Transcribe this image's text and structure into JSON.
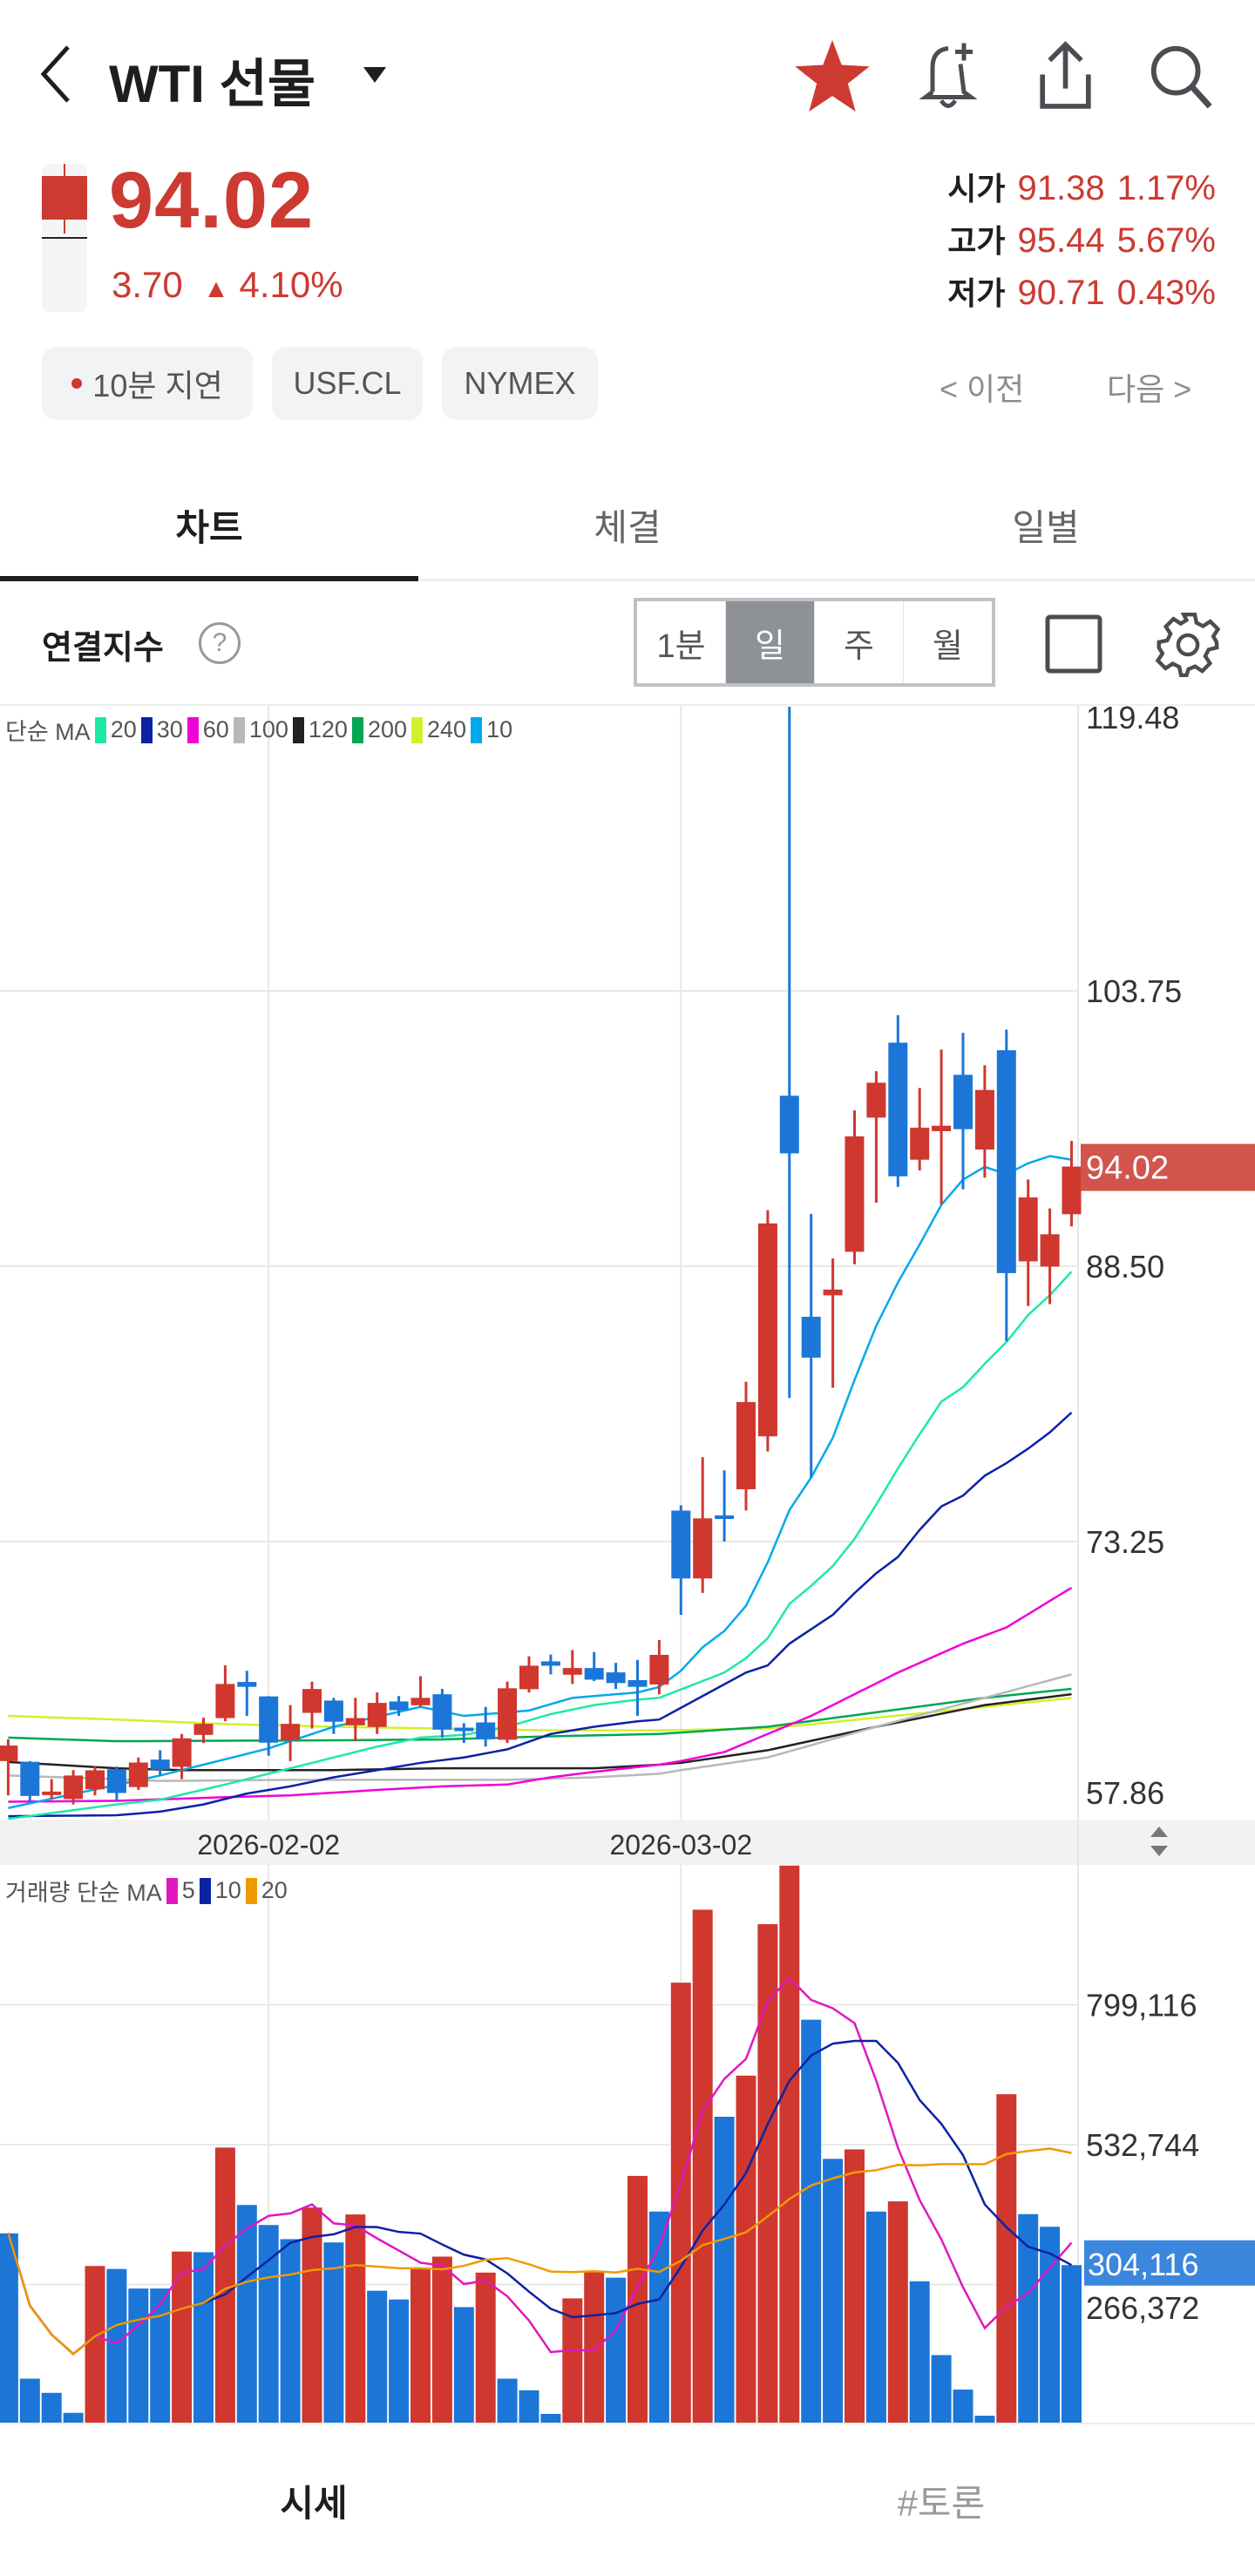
{
  "header": {
    "title": "WTI 선물",
    "icons": [
      "back-chevron-icon",
      "dropdown-triangle-icon",
      "star-icon",
      "bell-plus-icon",
      "share-icon",
      "search-icon"
    ],
    "favorite_color": "#cc3a31"
  },
  "quote": {
    "price": "94.02",
    "change": "3.70",
    "change_arrow": "▲",
    "change_pct": "4.10%",
    "open": {
      "label": "시가",
      "value": "91.38",
      "pct": "1.17%"
    },
    "high": {
      "label": "고가",
      "value": "95.44",
      "pct": "5.67%"
    },
    "low": {
      "label": "저가",
      "value": "90.71",
      "pct": "0.43%"
    },
    "up_color": "#cc3a31"
  },
  "chips": [
    "10분 지연",
    "USF.CL",
    "NYMEX"
  ],
  "pager": {
    "prev": "< 이전",
    "next": "다음 >"
  },
  "tabs": [
    {
      "label": "차트",
      "active": true
    },
    {
      "label": "체결"
    },
    {
      "label": "일별"
    }
  ],
  "controls": {
    "index_label": "연결지수",
    "help": "?",
    "periods": [
      "1분",
      "일",
      "주",
      "월"
    ],
    "selected_period": "일"
  },
  "bottom_nav": [
    "시세",
    "#토론"
  ],
  "chart_data": {
    "type": "candlestick",
    "price_axis": {
      "min": 57.86,
      "max": 119.48,
      "ticks": [
        "119.48",
        "103.75",
        "88.50",
        "73.25",
        "57.86"
      ],
      "current_label": "94.02"
    },
    "date_ticks": [
      {
        "label": "2026-02-02",
        "index": 12
      },
      {
        "label": "2026-03-02",
        "index": 31
      }
    ],
    "up_color": "#d0372e",
    "down_color": "#1b76d8",
    "ma_legend": {
      "title": "단순 MA",
      "items": [
        {
          "period": "20",
          "color": "#1de9a6"
        },
        {
          "period": "30",
          "color": "#0b22a5"
        },
        {
          "period": "60",
          "color": "#f000d8"
        },
        {
          "period": "100",
          "color": "#b8b8b8"
        },
        {
          "period": "120",
          "color": "#222222"
        },
        {
          "period": "200",
          "color": "#00a651"
        },
        {
          "period": "240",
          "color": "#d4f02a"
        },
        {
          "period": "10",
          "color": "#00a9ec"
        }
      ]
    },
    "candles_ohlc": [
      [
        61.1,
        62.3,
        59.2,
        61.96
      ],
      [
        61.06,
        61.1,
        58.9,
        59.17
      ],
      [
        59.22,
        60.1,
        59.0,
        59.41
      ],
      [
        59.0,
        60.6,
        58.7,
        60.3
      ],
      [
        59.54,
        60.8,
        59.2,
        60.59
      ],
      [
        60.65,
        60.8,
        58.9,
        59.33
      ],
      [
        59.66,
        61.3,
        59.5,
        61.02
      ],
      [
        61.18,
        61.7,
        60.3,
        60.62
      ],
      [
        60.78,
        62.6,
        60.1,
        62.36
      ],
      [
        62.55,
        63.5,
        62.1,
        63.16
      ],
      [
        63.48,
        66.4,
        63.3,
        65.37
      ],
      [
        65.48,
        66.1,
        63.6,
        65.21
      ],
      [
        64.68,
        64.7,
        61.4,
        62.12
      ],
      [
        62.26,
        64.2,
        61.1,
        63.16
      ],
      [
        63.77,
        65.5,
        62.9,
        65.09
      ],
      [
        64.45,
        64.6,
        62.6,
        63.28
      ],
      [
        63.08,
        64.6,
        62.2,
        63.48
      ],
      [
        62.99,
        64.9,
        62.6,
        64.32
      ],
      [
        64.4,
        64.7,
        63.6,
        63.92
      ],
      [
        64.19,
        65.8,
        64.1,
        64.6
      ],
      [
        64.8,
        65.1,
        62.4,
        62.84
      ],
      [
        62.95,
        63.2,
        62.1,
        62.87
      ],
      [
        63.24,
        64.1,
        61.9,
        62.31
      ],
      [
        62.28,
        65.5,
        62.1,
        65.13
      ],
      [
        65.08,
        66.9,
        64.9,
        66.38
      ],
      [
        66.62,
        67.0,
        65.9,
        66.38
      ],
      [
        65.88,
        67.25,
        65.37,
        66.25
      ],
      [
        66.25,
        67.14,
        65.53,
        65.61
      ],
      [
        66.01,
        66.54,
        65.09,
        65.42
      ],
      [
        65.58,
        66.7,
        63.6,
        65.21
      ],
      [
        65.34,
        67.8,
        64.8,
        66.98
      ],
      [
        74.97,
        75.26,
        69.2,
        71.21
      ],
      [
        71.21,
        77.92,
        70.41,
        74.54
      ],
      [
        74.7,
        77.2,
        73.25,
        74.64
      ],
      [
        76.15,
        82.1,
        74.97,
        80.98
      ],
      [
        79.08,
        91.6,
        78.24,
        90.87
      ],
      [
        97.94,
        119.48,
        81.2,
        94.75
      ],
      [
        85.7,
        91.4,
        76.8,
        83.44
      ],
      [
        86.89,
        88.93,
        81.77,
        87.21
      ],
      [
        89.3,
        97.13,
        88.61,
        95.69
      ],
      [
        96.73,
        99.3,
        92.02,
        98.66
      ],
      [
        100.88,
        102.4,
        92.9,
        93.48
      ],
      [
        94.4,
        98.37,
        93.8,
        96.17
      ],
      [
        95.98,
        100.5,
        91.94,
        96.28
      ],
      [
        99.1,
        101.43,
        92.76,
        96.09
      ],
      [
        94.96,
        99.63,
        93.4,
        98.26
      ],
      [
        100.46,
        101.6,
        84.35,
        88.12
      ],
      [
        88.77,
        93.3,
        86.3,
        92.31
      ],
      [
        88.48,
        91.7,
        86.4,
        90.27
      ],
      [
        91.38,
        95.44,
        90.71,
        94.02
      ]
    ],
    "moving_averages": {
      "10": [
        [
          0,
          58.5
        ],
        [
          7,
          60.3
        ],
        [
          10,
          61.2
        ],
        [
          12,
          61.8
        ],
        [
          15,
          63.0
        ],
        [
          19,
          64.1
        ],
        [
          21,
          63.6
        ],
        [
          24,
          63.9
        ],
        [
          26,
          64.6
        ],
        [
          29,
          64.9
        ],
        [
          30,
          65.2
        ],
        [
          31,
          66.1
        ],
        [
          32,
          67.4
        ],
        [
          33,
          68.3
        ],
        [
          34,
          69.7
        ],
        [
          35,
          72.1
        ],
        [
          36,
          75.0
        ],
        [
          37,
          76.8
        ],
        [
          38,
          79.0
        ],
        [
          39,
          82.2
        ],
        [
          40,
          85.2
        ],
        [
          41,
          87.6
        ],
        [
          42,
          89.7
        ],
        [
          43,
          91.9
        ],
        [
          44,
          93.3
        ],
        [
          45,
          94.0
        ],
        [
          46,
          93.6
        ],
        [
          47,
          94.2
        ],
        [
          48,
          94.6
        ],
        [
          49,
          94.4
        ]
      ],
      "20": [
        [
          0,
          57.9
        ],
        [
          5,
          58.7
        ],
        [
          7,
          58.96
        ],
        [
          10,
          59.8
        ],
        [
          12,
          60.4
        ],
        [
          15,
          61.3
        ],
        [
          17,
          61.9
        ],
        [
          19,
          62.4
        ],
        [
          21,
          62.55
        ],
        [
          23,
          63.0
        ],
        [
          25,
          63.7
        ],
        [
          27,
          64.2
        ],
        [
          29,
          64.5
        ],
        [
          30,
          64.6
        ],
        [
          33,
          66.0
        ],
        [
          34,
          66.8
        ],
        [
          35,
          67.9
        ],
        [
          36,
          69.8
        ],
        [
          37,
          70.8
        ],
        [
          38,
          71.9
        ],
        [
          39,
          73.4
        ],
        [
          40,
          75.3
        ],
        [
          41,
          77.3
        ],
        [
          42,
          79.2
        ],
        [
          43,
          81.0
        ],
        [
          44,
          81.8
        ],
        [
          45,
          83.1
        ],
        [
          46,
          84.3
        ],
        [
          47,
          85.8
        ],
        [
          48,
          86.9
        ],
        [
          49,
          88.2
        ]
      ],
      "30": [
        [
          0,
          58.05
        ],
        [
          5,
          58.1
        ],
        [
          7,
          58.3
        ],
        [
          9,
          58.7
        ],
        [
          11,
          59.3
        ],
        [
          13,
          59.7
        ],
        [
          15,
          60.2
        ],
        [
          17,
          60.6
        ],
        [
          19,
          61.0
        ],
        [
          21,
          61.3
        ],
        [
          23,
          61.75
        ],
        [
          25,
          62.6
        ],
        [
          27,
          63.0
        ],
        [
          29,
          63.3
        ],
        [
          30,
          63.4
        ],
        [
          34,
          66.0
        ],
        [
          35,
          66.4
        ],
        [
          36,
          67.6
        ],
        [
          37,
          68.4
        ],
        [
          38,
          69.2
        ],
        [
          39,
          70.4
        ],
        [
          40,
          71.5
        ],
        [
          41,
          72.4
        ],
        [
          42,
          73.9
        ],
        [
          43,
          75.2
        ],
        [
          44,
          75.8
        ],
        [
          45,
          76.9
        ],
        [
          46,
          77.6
        ],
        [
          47,
          78.4
        ],
        [
          48,
          79.3
        ],
        [
          49,
          80.4
        ]
      ],
      "60": [
        [
          0,
          58.85
        ],
        [
          5,
          58.9
        ],
        [
          10,
          59.1
        ],
        [
          13,
          59.2
        ],
        [
          17,
          59.5
        ],
        [
          20,
          59.7
        ],
        [
          23,
          59.8
        ],
        [
          25,
          60.2
        ],
        [
          27,
          60.5
        ],
        [
          30,
          60.9
        ],
        [
          31,
          61.1
        ],
        [
          33,
          61.6
        ],
        [
          35,
          62.6
        ],
        [
          37,
          63.6
        ],
        [
          39,
          64.8
        ],
        [
          41,
          66.0
        ],
        [
          44,
          67.6
        ],
        [
          46,
          68.5
        ],
        [
          49,
          70.7
        ]
      ],
      "100": [
        [
          0,
          60.3
        ],
        [
          5,
          60.1
        ],
        [
          7,
          60.0
        ],
        [
          13,
          60.06
        ],
        [
          23,
          60.06
        ],
        [
          27,
          60.2
        ],
        [
          30,
          60.4
        ],
        [
          31,
          60.6
        ],
        [
          35,
          61.3
        ],
        [
          40,
          63.0
        ],
        [
          45,
          64.6
        ],
        [
          49,
          65.9
        ]
      ],
      "120": [
        [
          0,
          61.05
        ],
        [
          5,
          60.7
        ],
        [
          8,
          60.6
        ],
        [
          15,
          60.6
        ],
        [
          20,
          60.7
        ],
        [
          27,
          60.7
        ],
        [
          30,
          60.9
        ],
        [
          31,
          61.0
        ],
        [
          35,
          61.7
        ],
        [
          40,
          63.0
        ],
        [
          45,
          64.2
        ],
        [
          49,
          64.8
        ]
      ],
      "200": [
        [
          0,
          62.4
        ],
        [
          5,
          62.2
        ],
        [
          15,
          62.25
        ],
        [
          20,
          62.3
        ],
        [
          25,
          62.47
        ],
        [
          30,
          62.6
        ],
        [
          35,
          63.0
        ],
        [
          40,
          63.8
        ],
        [
          45,
          64.6
        ],
        [
          49,
          65.1
        ]
      ],
      "240": [
        [
          0,
          63.6
        ],
        [
          5,
          63.4
        ],
        [
          10,
          63.15
        ],
        [
          15,
          63.0
        ],
        [
          20,
          62.9
        ],
        [
          25,
          62.8
        ],
        [
          30,
          62.8
        ],
        [
          35,
          62.9
        ],
        [
          40,
          63.5
        ],
        [
          45,
          64.1
        ],
        [
          49,
          64.6
        ]
      ]
    },
    "volume": {
      "legend_title": "거래량 단순 MA",
      "ma_items": [
        {
          "period": "5",
          "color": "#e018c0"
        },
        {
          "period": "10",
          "color": "#0b22a5"
        },
        {
          "period": "20",
          "color": "#f09a00"
        }
      ],
      "axis": {
        "min": 0,
        "max": 1065488,
        "ticks": [
          "799,116",
          "532,744",
          "266,372"
        ],
        "current_label": "304,116"
      },
      "values": [
        364600,
        87900,
        60900,
        22800,
        302400,
        296800,
        259500,
        259500,
        330000,
        328700,
        527900,
        418600,
        380500,
        353600,
        413800,
        347300,
        400600,
        255300,
        238700,
        297500,
        320300,
        224200,
        289900,
        87900,
        65700,
        20800,
        240800,
        290600,
        280200,
        474000,
        406100,
        842000,
        981000,
        586700,
        665000,
        953400,
        1065000,
        771500,
        506500,
        524500,
        406100,
        425500,
        273300,
        132800,
        67100,
        17300,
        629600,
        401300,
        377100,
        304116
      ]
    }
  }
}
